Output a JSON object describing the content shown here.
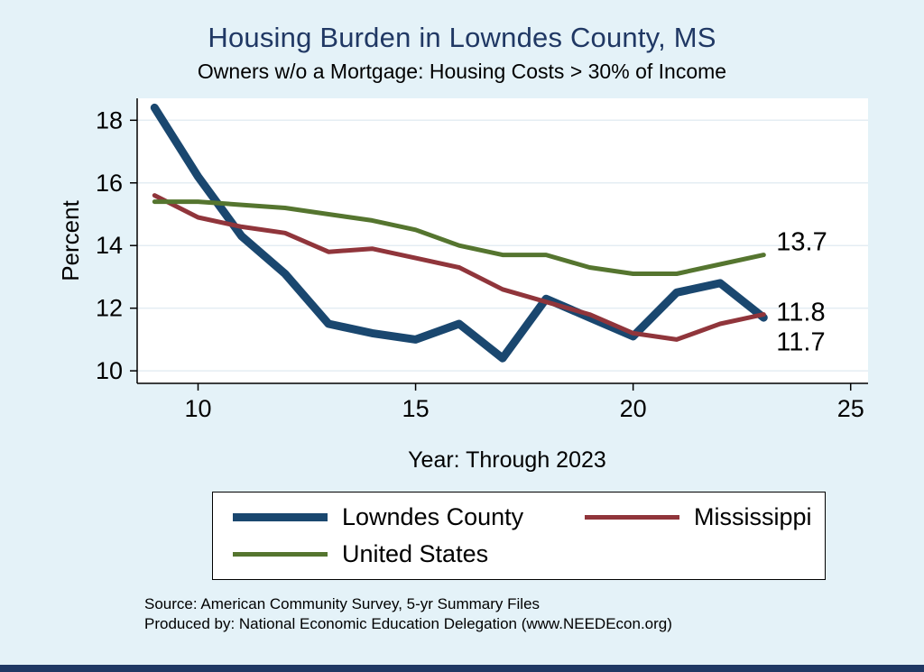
{
  "title": "Housing Burden in Lowndes County, MS",
  "subtitle": "Owners w/o a Mortgage: Housing Costs > 30% of Income",
  "chart_data": {
    "type": "line",
    "x": [
      9,
      10,
      11,
      12,
      13,
      14,
      15,
      16,
      17,
      18,
      19,
      20,
      21,
      22,
      23
    ],
    "series": [
      {
        "name": "Lowndes County",
        "color": "#1a476f",
        "width": 9,
        "values": [
          18.4,
          16.2,
          14.3,
          13.1,
          11.5,
          11.2,
          11.0,
          11.5,
          10.4,
          12.3,
          11.7,
          11.1,
          12.5,
          12.8,
          11.7
        ]
      },
      {
        "name": "Mississippi",
        "color": "#90353b",
        "width": 5,
        "values": [
          15.6,
          14.9,
          14.6,
          14.4,
          13.8,
          13.9,
          13.6,
          13.3,
          12.6,
          12.2,
          11.8,
          11.2,
          11.0,
          11.5,
          11.8
        ]
      },
      {
        "name": "United States",
        "color": "#55752f",
        "width": 5,
        "values": [
          15.4,
          15.4,
          15.3,
          15.2,
          15.0,
          14.8,
          14.5,
          14.0,
          13.7,
          13.7,
          13.3,
          13.1,
          13.1,
          13.4,
          13.7
        ]
      }
    ],
    "xlabel": "Year: Through 2023",
    "ylabel": "Percent",
    "xticks": [
      10,
      15,
      20,
      25
    ],
    "yticks": [
      10,
      12,
      14,
      16,
      18
    ],
    "xlim": [
      8.6,
      25.4
    ],
    "ylim": [
      9.6,
      18.7
    ],
    "grid": true,
    "legend_position": "bottom",
    "end_labels": [
      {
        "text": "13.7",
        "value": 13.7,
        "dy": -14
      },
      {
        "text": "11.8",
        "value": 11.8,
        "dy": -2
      },
      {
        "text": "11.7",
        "value": 11.8,
        "dy": 31
      }
    ]
  },
  "notes": {
    "source": "Source: American Community Survey, 5-yr Summary Files",
    "produced_by": "Produced by: National Economic Education Delegation (www.NEEDEcon.org)"
  },
  "colors": {
    "page_background": "#e4f2f8",
    "title": "#203864",
    "plot_background": "#ffffff",
    "axis": "#000000",
    "gridline": "#e4edf3",
    "footer_bar": "#1f3864"
  }
}
